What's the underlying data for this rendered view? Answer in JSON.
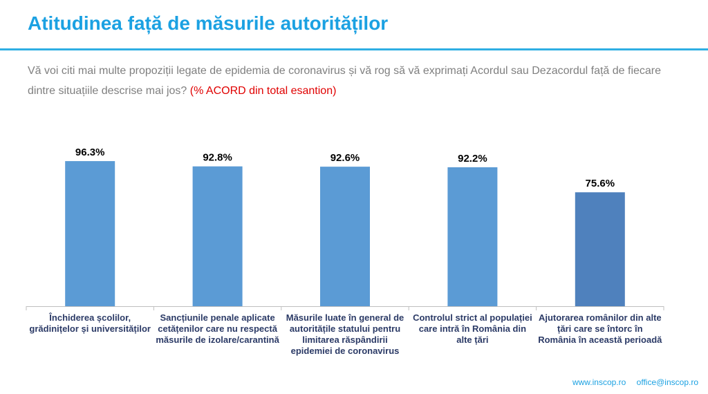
{
  "header": {
    "title": "Atitudinea față de măsurile autorităților",
    "intro": "Vă voi citi mai multe propoziții legate de epidemia de coronavirus și vă rog să vă exprimați Acordul sau Dezacordul față de fiecare dintre situațiile descrise mai jos?",
    "intro_highlight": "(% ACORD din total esantion)"
  },
  "chart_data": {
    "type": "bar",
    "categories": [
      "Închiderea școlilor, grădinițelor și universităților",
      "Sancțiunile penale aplicate cetățenilor care nu respectă măsurile de izolare/carantină",
      "Măsurile luate în general de autoritățile statului pentru limitarea răspândirii epidemiei de coronavirus",
      "Controlul strict al populației care intră în România din alte țări",
      "Ajutorarea românilor din alte țări care se întorc în România în această perioadă"
    ],
    "values": [
      96.3,
      92.8,
      92.6,
      92.2,
      75.6
    ],
    "value_labels": [
      "96.3%",
      "92.8%",
      "92.6%",
      "92.2%",
      "75.6%"
    ],
    "ylim": [
      0,
      100
    ],
    "colors": [
      "#5b9bd5",
      "#5b9bd5",
      "#5b9bd5",
      "#5b9bd5",
      "#4f81bd"
    ],
    "grid": false
  },
  "footer": {
    "website": "www.inscop.ro",
    "email": "office@inscop.ro"
  }
}
